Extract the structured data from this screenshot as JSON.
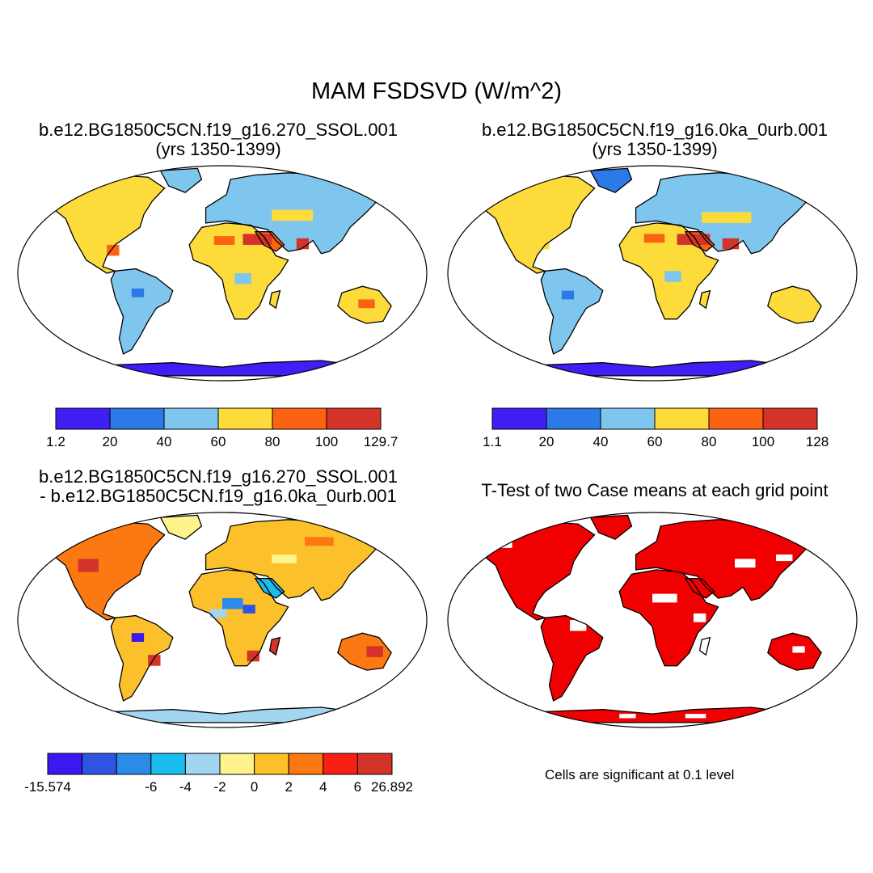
{
  "figure": {
    "title": "MAM FSDSVD (W/m^2)"
  },
  "panels": [
    {
      "id": "case1",
      "title_line1": "b.e12.BG1850C5CN.f19_g16.270_SSOL.001",
      "title_line2": "(yrs 1350-1399)",
      "colorbar": {
        "colors": [
          "#3f1ff3",
          "#2b7ae8",
          "#7ec6ee",
          "#fddb3a",
          "#fb6212",
          "#d43329"
        ],
        "labels": [
          "1.2",
          "20",
          "40",
          "60",
          "80",
          "100",
          "129.7"
        ]
      }
    },
    {
      "id": "case2",
      "title_line1": "b.e12.BG1850C5CN.f19_g16.0ka_0urb.001",
      "title_line2": "(yrs 1350-1399)",
      "colorbar": {
        "colors": [
          "#3f1ff3",
          "#2b7ae8",
          "#7ec6ee",
          "#fddb3a",
          "#fb6212",
          "#d43329"
        ],
        "labels": [
          "1.1",
          "20",
          "40",
          "60",
          "80",
          "100",
          "128"
        ]
      }
    },
    {
      "id": "difference",
      "title_line1": "b.e12.BG1850C5CN.f19_g16.270_SSOL.001",
      "title_line2": "- b.e12.BG1850C5CN.f19_g16.0ka_0urb.001",
      "colorbar": {
        "colors": [
          "#3a18ef",
          "#2d55e2",
          "#2a8be9",
          "#1bbcee",
          "#a2d5f0",
          "#fef38c",
          "#fbc02a",
          "#fb7812",
          "#f71e12",
          "#d43329"
        ],
        "labels": [
          "-15.574",
          "-6",
          "-4",
          "-2",
          "0",
          "2",
          "4",
          "6",
          "26.892"
        ]
      }
    },
    {
      "id": "ttest",
      "title_line1": "T-Test of two Case means at each grid point",
      "note": "Cells are significant at 0.1 level"
    }
  ],
  "map_colors": {
    "antarctica_case": "#3f1ff3",
    "antarctica_diff": "#a2d5f0",
    "significant": "#f00000",
    "ocean": "#ffffff",
    "coast": "#000000"
  }
}
